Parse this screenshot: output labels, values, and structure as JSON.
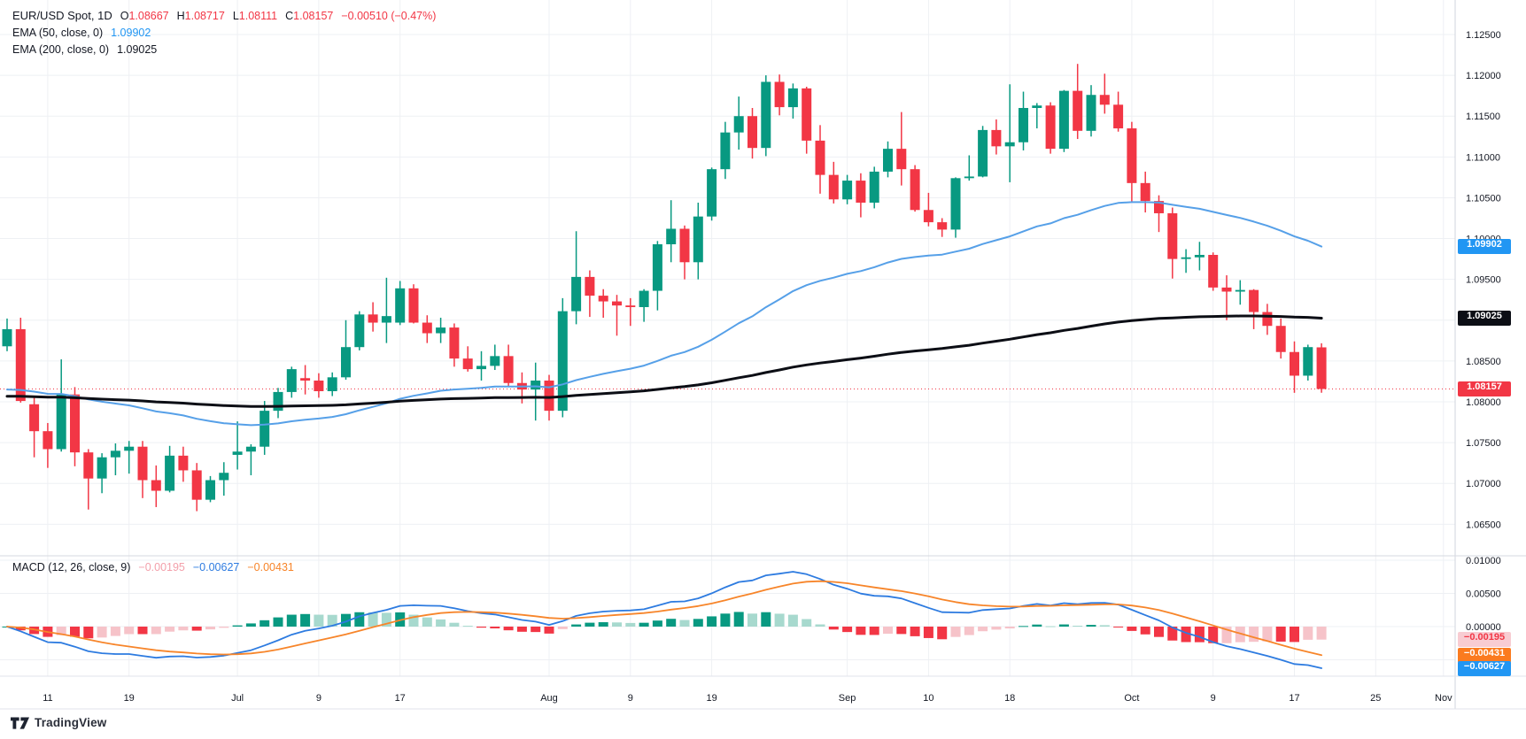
{
  "header": {
    "symbol_title": "EUR/USD Spot, 1D",
    "o_label": "O",
    "o": "1.08667",
    "h_label": "H",
    "h": "1.08717",
    "l_label": "L",
    "l": "1.08111",
    "c_label": "C",
    "c": "1.08157",
    "change": "−0.00510 (−0.47%)",
    "ema50_label": "EMA (50, close, 0)",
    "ema50_value": "1.09902",
    "ema200_label": "EMA (200, close, 0)",
    "ema200_value": "1.09025",
    "macd_label": "MACD (12, 26, close, 9)",
    "macd_hist_value": "−0.00195",
    "macd_line_value": "−0.00627",
    "macd_signal_value": "−0.00431"
  },
  "watermark": "TradingView",
  "badges": [
    {
      "name": "ema50-price-badge",
      "pane": "price",
      "value": 1.09902,
      "text": "1.09902",
      "bg": "#2196f3",
      "fg": "#ffffff"
    },
    {
      "name": "ema200-price-badge",
      "pane": "price",
      "value": 1.09025,
      "text": "1.09025",
      "bg": "#0c0e15",
      "fg": "#ffffff"
    },
    {
      "name": "last-price-badge",
      "pane": "price",
      "value": 1.08157,
      "text": "1.08157",
      "bg": "#f23645",
      "fg": "#ffffff"
    },
    {
      "name": "macd-hist-badge",
      "pane": "macd",
      "value": -0.00195,
      "text": "−0.00195",
      "bg": "#f8ccd2",
      "fg": "#f23645"
    },
    {
      "name": "macd-signal-badge",
      "pane": "macd",
      "value": -0.00431,
      "text": "−0.00431",
      "bg": "#fb7b1f",
      "fg": "#ffffff"
    },
    {
      "name": "macd-line-badge",
      "pane": "macd",
      "value": -0.00627,
      "text": "−0.00627",
      "bg": "#2196f3",
      "fg": "#ffffff"
    }
  ],
  "chart_data": {
    "type": "candlestick",
    "symbol": "EUR/USD Spot",
    "interval": "1D",
    "up_color": "#089981",
    "down_color": "#f23645",
    "grid": true,
    "price_range": [
      1.0645,
      1.1292
    ],
    "last_price": 1.08157,
    "ohlc": [
      [
        1.0868,
        1.0902,
        1.0862,
        1.0889
      ],
      [
        1.0889,
        1.0903,
        1.0799,
        1.0801
      ],
      [
        1.0797,
        1.0806,
        1.0732,
        1.0764
      ],
      [
        1.0764,
        1.0774,
        1.0719,
        1.0742
      ],
      [
        1.0742,
        1.0852,
        1.0739,
        1.0809
      ],
      [
        1.0809,
        1.0818,
        1.0721,
        1.0738
      ],
      [
        1.0738,
        1.0742,
        1.0668,
        1.0706
      ],
      [
        1.0706,
        1.0737,
        1.0688,
        1.0732
      ],
      [
        1.0732,
        1.0749,
        1.071,
        1.074
      ],
      [
        1.074,
        1.0752,
        1.0712,
        1.0745
      ],
      [
        1.0745,
        1.0752,
        1.0682,
        1.0704
      ],
      [
        1.0704,
        1.0722,
        1.0671,
        1.0691
      ],
      [
        1.0691,
        1.0746,
        1.0689,
        1.0734
      ],
      [
        1.0734,
        1.0745,
        1.0702,
        1.0716
      ],
      [
        1.0716,
        1.0725,
        1.0666,
        1.068
      ],
      [
        1.068,
        1.0709,
        1.0677,
        1.0704
      ],
      [
        1.0704,
        1.0726,
        1.0685,
        1.0713
      ],
      [
        1.0735,
        1.0776,
        1.0717,
        1.0739
      ],
      [
        1.0739,
        1.0748,
        1.071,
        1.0745
      ],
      [
        1.0745,
        1.0801,
        1.0735,
        1.0789
      ],
      [
        1.0789,
        1.0817,
        1.078,
        1.0812
      ],
      [
        1.0812,
        1.0843,
        1.0805,
        1.084
      ],
      [
        1.0829,
        1.0845,
        1.0809,
        1.0826
      ],
      [
        1.0826,
        1.0835,
        1.0805,
        1.0813
      ],
      [
        1.0813,
        1.0836,
        1.0807,
        1.083
      ],
      [
        1.083,
        1.09,
        1.0827,
        1.0867
      ],
      [
        1.0867,
        1.0911,
        1.0863,
        1.0907
      ],
      [
        1.0907,
        1.0922,
        1.0886,
        1.0897
      ],
      [
        1.0897,
        1.0952,
        1.0872,
        1.0905
      ],
      [
        1.0897,
        1.0948,
        1.0894,
        1.0939
      ],
      [
        1.0939,
        1.0944,
        1.0896,
        1.0897
      ],
      [
        1.0897,
        1.0906,
        1.0872,
        1.0884
      ],
      [
        1.0884,
        1.0903,
        1.0872,
        1.0891
      ],
      [
        1.0891,
        1.0896,
        1.0843,
        1.0853
      ],
      [
        1.0853,
        1.0868,
        1.0837,
        1.084
      ],
      [
        1.084,
        1.0862,
        1.0826,
        1.0844
      ],
      [
        1.0844,
        1.087,
        1.0839,
        1.0856
      ],
      [
        1.0856,
        1.087,
        1.0819,
        1.0823
      ],
      [
        1.0823,
        1.0836,
        1.0798,
        1.0815
      ],
      [
        1.0815,
        1.0848,
        1.0777,
        1.0826
      ],
      [
        1.0826,
        1.0833,
        1.0777,
        1.0789
      ],
      [
        1.0789,
        1.0927,
        1.0781,
        1.0911
      ],
      [
        1.0911,
        1.1009,
        1.0895,
        1.0953
      ],
      [
        1.0953,
        1.0961,
        1.0904,
        1.093
      ],
      [
        1.093,
        1.0938,
        1.0903,
        1.0923
      ],
      [
        1.0923,
        1.0931,
        1.0881,
        1.0918
      ],
      [
        1.0918,
        1.0927,
        1.0893,
        1.0916
      ],
      [
        1.0916,
        1.0938,
        1.0898,
        1.0936
      ],
      [
        1.0936,
        1.0997,
        1.0912,
        1.0993
      ],
      [
        1.0993,
        1.1047,
        1.0971,
        1.1012
      ],
      [
        1.1012,
        1.1016,
        1.095,
        1.0971
      ],
      [
        1.0971,
        1.1044,
        1.095,
        1.1027
      ],
      [
        1.1027,
        1.1087,
        1.1022,
        1.1085
      ],
      [
        1.1085,
        1.1143,
        1.1073,
        1.113
      ],
      [
        1.113,
        1.1174,
        1.1109,
        1.115
      ],
      [
        1.115,
        1.116,
        1.1098,
        1.1111
      ],
      [
        1.1111,
        1.12,
        1.1101,
        1.1192
      ],
      [
        1.1192,
        1.1201,
        1.1151,
        1.1161
      ],
      [
        1.1161,
        1.119,
        1.1147,
        1.1184
      ],
      [
        1.1184,
        1.1186,
        1.1104,
        1.112
      ],
      [
        1.112,
        1.1139,
        1.1055,
        1.1078
      ],
      [
        1.1078,
        1.1094,
        1.1043,
        1.1048
      ],
      [
        1.1048,
        1.1078,
        1.1042,
        1.1071
      ],
      [
        1.1071,
        1.108,
        1.1026,
        1.1044
      ],
      [
        1.1044,
        1.1088,
        1.1037,
        1.1082
      ],
      [
        1.1082,
        1.1119,
        1.1075,
        1.111
      ],
      [
        1.111,
        1.1155,
        1.1065,
        1.1085
      ],
      [
        1.1085,
        1.109,
        1.1033,
        1.1035
      ],
      [
        1.1035,
        1.1056,
        1.1015,
        1.102
      ],
      [
        1.102,
        1.1025,
        1.1002,
        1.1011
      ],
      [
        1.1011,
        1.1075,
        1.1001,
        1.1074
      ],
      [
        1.1074,
        1.1102,
        1.1071,
        1.1076
      ],
      [
        1.1076,
        1.1138,
        1.1075,
        1.1133
      ],
      [
        1.1133,
        1.1146,
        1.1103,
        1.1113
      ],
      [
        1.1113,
        1.1189,
        1.1069,
        1.1118
      ],
      [
        1.1118,
        1.118,
        1.1108,
        1.116
      ],
      [
        1.116,
        1.1166,
        1.1135,
        1.1163
      ],
      [
        1.1163,
        1.1167,
        1.1104,
        1.111
      ],
      [
        1.111,
        1.1182,
        1.1106,
        1.1181
      ],
      [
        1.1181,
        1.1214,
        1.1122,
        1.1132
      ],
      [
        1.1132,
        1.1188,
        1.1125,
        1.1176
      ],
      [
        1.1176,
        1.1202,
        1.1153,
        1.1164
      ],
      [
        1.1164,
        1.118,
        1.1131,
        1.1135
      ],
      [
        1.1135,
        1.1143,
        1.1045,
        1.1068
      ],
      [
        1.1068,
        1.1082,
        1.1032,
        1.1046
      ],
      [
        1.1046,
        1.1053,
        1.1008,
        1.1031
      ],
      [
        1.1031,
        1.1038,
        1.0951,
        1.0975
      ],
      [
        1.0975,
        1.0987,
        1.0958,
        1.0977
      ],
      [
        1.0977,
        1.0996,
        1.0961,
        1.098
      ],
      [
        1.098,
        1.0983,
        1.0936,
        1.094
      ],
      [
        1.094,
        1.0955,
        1.09,
        1.0935
      ],
      [
        1.0935,
        1.0949,
        1.0919,
        1.0937
      ],
      [
        1.0937,
        1.0938,
        1.0889,
        1.091
      ],
      [
        1.091,
        1.092,
        1.0882,
        1.0893
      ],
      [
        1.0893,
        1.0902,
        1.0853,
        1.0861
      ],
      [
        1.0861,
        1.0874,
        1.0811,
        1.0832
      ],
      [
        1.0832,
        1.087,
        1.0826,
        1.0867
      ],
      [
        1.08667,
        1.08717,
        1.08111,
        1.08157
      ]
    ],
    "overlays": [
      {
        "name": "EMA 50",
        "period": 50,
        "seed": 1.0812,
        "value": 1.09902,
        "color": "#56a0e8",
        "width": 2
      },
      {
        "name": "EMA 200",
        "period": 200,
        "seed": 1.0806,
        "value": 1.09025,
        "color": "#0c0e15",
        "width": 3
      }
    ],
    "macd": {
      "fast": 12,
      "slow": 26,
      "signal": 9,
      "macd_value": -0.00627,
      "signal_value": -0.00431,
      "hist_value": -0.00195,
      "macd_color": "#2d7be0",
      "signal_color": "#f7852a",
      "hist_colors": {
        "up_grow": "#089981",
        "up_fall": "#a7d9ce",
        "down_grow": "#f23645",
        "down_fall": "#f6c3c9"
      }
    },
    "price_ticks": [
      {
        "label": "1.12500",
        "value": 1.125
      },
      {
        "label": "1.12000",
        "value": 1.12
      },
      {
        "label": "1.11500",
        "value": 1.115
      },
      {
        "label": "1.11000",
        "value": 1.11
      },
      {
        "label": "1.10500",
        "value": 1.105
      },
      {
        "label": "1.10000",
        "value": 1.1
      },
      {
        "label": "1.09500",
        "value": 1.095
      },
      {
        "label": "1.09000",
        "value": 1.09
      },
      {
        "label": "1.08500",
        "value": 1.085
      },
      {
        "label": "1.08000",
        "value": 1.08
      },
      {
        "label": "1.07500",
        "value": 1.075
      },
      {
        "label": "1.07000",
        "value": 1.07
      },
      {
        "label": "1.06500",
        "value": 1.065
      }
    ],
    "macd_ticks": [
      {
        "label": "0.01000",
        "value": 0.01
      },
      {
        "label": "0.00500",
        "value": 0.005
      },
      {
        "label": "0.00000",
        "value": 0.0
      }
    ],
    "time_ticks": [
      {
        "label": "11",
        "i": 3
      },
      {
        "label": "19",
        "i": 9
      },
      {
        "label": "Jul",
        "i": 17
      },
      {
        "label": "9",
        "i": 23
      },
      {
        "label": "17",
        "i": 29
      },
      {
        "label": "Aug",
        "i": 40
      },
      {
        "label": "9",
        "i": 46
      },
      {
        "label": "19",
        "i": 52
      },
      {
        "label": "Sep",
        "i": 62
      },
      {
        "label": "10",
        "i": 68
      },
      {
        "label": "18",
        "i": 74
      },
      {
        "label": "Oct",
        "i": 83
      },
      {
        "label": "9",
        "i": 89
      },
      {
        "label": "17",
        "i": 95
      },
      {
        "label": "25",
        "i": 101
      },
      {
        "label": "Nov",
        "i": 106
      }
    ]
  }
}
